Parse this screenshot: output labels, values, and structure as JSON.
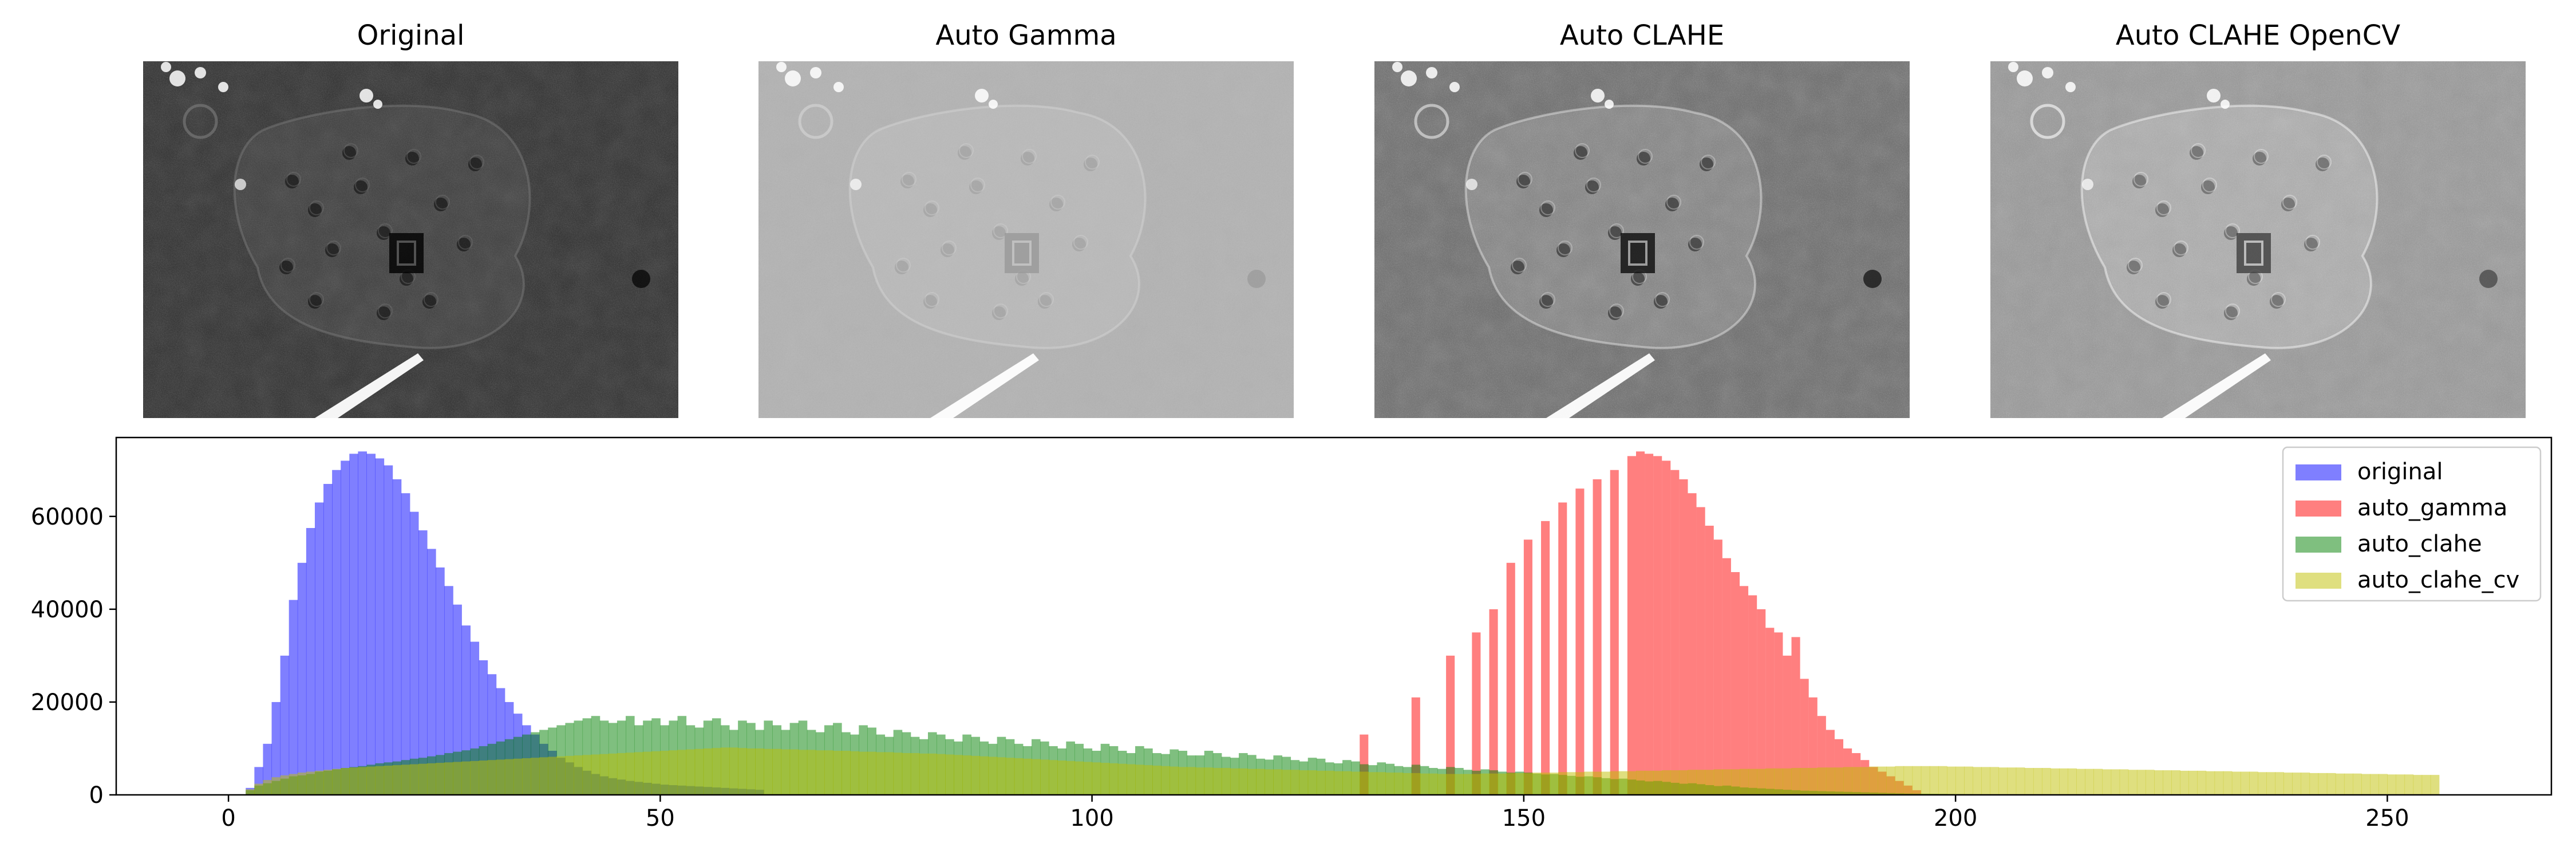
{
  "panels": [
    {
      "title": "Original",
      "variant": "original",
      "brightness": 0.18,
      "contrast": 1.0
    },
    {
      "title": "Auto Gamma",
      "variant": "auto_gamma",
      "brightness": 0.7,
      "contrast": 0.45
    },
    {
      "title": "Auto CLAHE",
      "variant": "auto_clahe",
      "brightness": 0.42,
      "contrast": 1.6
    },
    {
      "title": "Auto CLAHE OpenCV",
      "variant": "auto_clahe_cv",
      "brightness": 0.6,
      "contrast": 1.5
    }
  ],
  "chart_data": {
    "type": "bar",
    "subtype": "histogram",
    "title": "",
    "xlabel": "",
    "ylabel": "",
    "xlim": [
      -13,
      269
    ],
    "ylim": [
      0,
      77000
    ],
    "xticks": [
      0,
      50,
      100,
      150,
      200,
      250
    ],
    "yticks": [
      0,
      20000,
      40000,
      60000
    ],
    "legend_position": "top-right",
    "grid": false,
    "series": [
      {
        "name": "original",
        "color": "#0000ff",
        "alpha": 0.5,
        "bin_width": 1,
        "x_start": 2,
        "values": [
          1500,
          6000,
          11000,
          20000,
          30000,
          42000,
          50000,
          57500,
          63000,
          67000,
          70000,
          72000,
          73500,
          74000,
          73500,
          72500,
          71000,
          68000,
          65000,
          61000,
          57000,
          53000,
          49000,
          45000,
          41000,
          36500,
          33000,
          29000,
          26000,
          23000,
          20000,
          17500,
          15000,
          13000,
          11000,
          9500,
          8000,
          7000,
          6000,
          5200,
          4500,
          4000,
          3600,
          3300,
          3000,
          2800,
          2600,
          2400,
          2200,
          2100,
          2000,
          1900,
          1800,
          1700,
          1600,
          1500,
          1400,
          1300,
          1200,
          1100
        ]
      },
      {
        "name": "auto_gamma",
        "color": "#ff0000",
        "alpha": 0.5,
        "x": [
          131,
          137,
          141,
          144,
          146,
          148,
          150,
          152,
          154,
          156,
          158,
          160,
          162,
          163,
          164,
          165,
          166,
          167,
          168,
          169,
          170,
          171,
          172,
          173,
          174,
          175,
          176,
          177,
          178,
          179,
          180,
          181,
          182,
          183,
          184,
          185,
          186,
          187,
          188,
          189,
          190,
          191,
          192,
          193,
          194,
          195
        ],
        "values": [
          13000,
          21000,
          30000,
          35000,
          40000,
          50000,
          55000,
          59000,
          63000,
          66000,
          68000,
          70000,
          73000,
          74000,
          73500,
          73000,
          72000,
          70000,
          68000,
          65000,
          62000,
          58000,
          55000,
          51000,
          48000,
          45000,
          43000,
          40000,
          36000,
          35000,
          30000,
          34000,
          25000,
          21000,
          17000,
          14000,
          12000,
          10000,
          9000,
          7500,
          6000,
          5000,
          4000,
          3000,
          2000,
          1000
        ]
      },
      {
        "name": "auto_clahe",
        "color": "#008000",
        "alpha": 0.5,
        "bin_width": 1,
        "x_start": 2,
        "values": [
          1000,
          2000,
          2500,
          3000,
          3500,
          4000,
          4200,
          4500,
          5000,
          5200,
          5500,
          5800,
          6000,
          6200,
          6500,
          6800,
          7000,
          7200,
          7500,
          7800,
          8000,
          8300,
          8600,
          9000,
          9300,
          9600,
          10000,
          10500,
          11000,
          11500,
          12000,
          12500,
          13000,
          13500,
          14000,
          14500,
          15000,
          15500,
          16000,
          16500,
          17000,
          16000,
          15500,
          16000,
          17000,
          15000,
          16000,
          16500,
          15000,
          16000,
          17000,
          15000,
          14500,
          16000,
          16500,
          15000,
          14000,
          16000,
          15500,
          14000,
          16000,
          15000,
          14000,
          15500,
          16000,
          14000,
          13500,
          15000,
          15500,
          13500,
          13000,
          15000,
          14500,
          13000,
          12500,
          14000,
          13500,
          12500,
          12000,
          13500,
          13000,
          12000,
          11500,
          13000,
          12500,
          11500,
          11000,
          12500,
          12000,
          11000,
          10500,
          12000,
          11500,
          10500,
          10000,
          11500,
          11000,
          10000,
          9500,
          11000,
          10500,
          9500,
          9000,
          10500,
          10000,
          9000,
          8800,
          9800,
          9500,
          8500,
          8500,
          9500,
          9000,
          8200,
          8000,
          9000,
          8600,
          7800,
          7600,
          8500,
          8200,
          7500,
          7200,
          8000,
          7800,
          7000,
          6800,
          7500,
          7200,
          6600,
          6400,
          7000,
          6700,
          6200,
          6000,
          6500,
          6200,
          5800,
          5600,
          6000,
          5800,
          5400,
          5200,
          5500,
          5300,
          5000,
          4800,
          5000,
          4800,
          4600,
          4400,
          4500,
          4300,
          4100,
          3900,
          4000,
          3800,
          3600,
          3400,
          3500,
          3300,
          3100,
          2900,
          3000,
          2800,
          2600,
          2400,
          2500,
          2300,
          2100,
          1900,
          2000,
          1800,
          1600,
          1500,
          1400,
          1300,
          1200,
          1100,
          1000,
          900,
          850,
          800,
          750,
          700,
          650,
          600,
          550,
          500,
          450,
          400,
          350,
          300,
          280,
          260,
          240,
          220,
          200,
          180,
          160,
          140,
          120,
          100,
          90,
          80,
          70,
          60,
          50,
          40,
          30
        ]
      },
      {
        "name": "auto_clahe_cv",
        "color": "#bfbf00",
        "alpha": 0.5,
        "bin_width": 1,
        "x_start": 2,
        "values": [
          1200,
          2400,
          3200,
          3800,
          4200,
          4500,
          4800,
          5000,
          5200,
          5400,
          5600,
          5800,
          5900,
          6000,
          6100,
          6200,
          6300,
          6400,
          6500,
          6600,
          6700,
          6800,
          6900,
          7000,
          7100,
          7200,
          7300,
          7400,
          7500,
          7600,
          7700,
          7800,
          7900,
          8000,
          8100,
          8200,
          8300,
          8400,
          8500,
          8600,
          8700,
          8800,
          8900,
          9000,
          9100,
          9200,
          9300,
          9400,
          9500,
          9600,
          9700,
          9800,
          9900,
          10000,
          10100,
          10200,
          10200,
          10100,
          10000,
          10000,
          9900,
          9900,
          9800,
          9800,
          9700,
          9700,
          9600,
          9600,
          9500,
          9500,
          9400,
          9300,
          9300,
          9200,
          9200,
          9100,
          9000,
          9000,
          8900,
          8900,
          8800,
          8700,
          8600,
          8500,
          8400,
          8300,
          8200,
          8100,
          8000,
          7900,
          7800,
          7700,
          7600,
          7500,
          7400,
          7300,
          7200,
          7100,
          7000,
          6900,
          6800,
          6700,
          6600,
          6500,
          6400,
          6300,
          6200,
          6100,
          6000,
          6000,
          5900,
          5900,
          5800,
          5800,
          5700,
          5700,
          5600,
          5600,
          5500,
          5500,
          5400,
          5400,
          5300,
          5300,
          5200,
          5200,
          5100,
          5100,
          5000,
          5000,
          4900,
          4900,
          4800,
          4800,
          4700,
          4700,
          4600,
          4600,
          4500,
          4500,
          4500,
          4500,
          4500,
          4600,
          4600,
          4600,
          4700,
          4700,
          4700,
          4800,
          4800,
          4800,
          4900,
          4900,
          4900,
          5000,
          5000,
          5000,
          5100,
          5100,
          5100,
          5200,
          5200,
          5200,
          5300,
          5300,
          5300,
          5400,
          5400,
          5400,
          5500,
          5500,
          5500,
          5600,
          5600,
          5600,
          5700,
          5700,
          5700,
          5800,
          5800,
          5800,
          5900,
          5900,
          5900,
          6000,
          6000,
          6000,
          6100,
          6100,
          6100,
          6200,
          6200,
          6200,
          6200,
          6200,
          6200,
          6100,
          6100,
          6100,
          6000,
          6000,
          6000,
          5900,
          5900,
          5900,
          5800,
          5800,
          5800,
          5700,
          5700,
          5700,
          5600,
          5600,
          5600,
          5500,
          5500,
          5500,
          5400,
          5400,
          5400,
          5300,
          5300,
          5300,
          5200,
          5200,
          5200,
          5100,
          5100,
          5100,
          5000,
          5000,
          5000,
          4900,
          4900,
          4900,
          4800,
          4800,
          4800,
          4700,
          4700,
          4700,
          4600,
          4600,
          4600,
          4500,
          4500,
          4500,
          4400,
          4400,
          4400,
          4300,
          4300,
          4300
        ]
      }
    ]
  }
}
